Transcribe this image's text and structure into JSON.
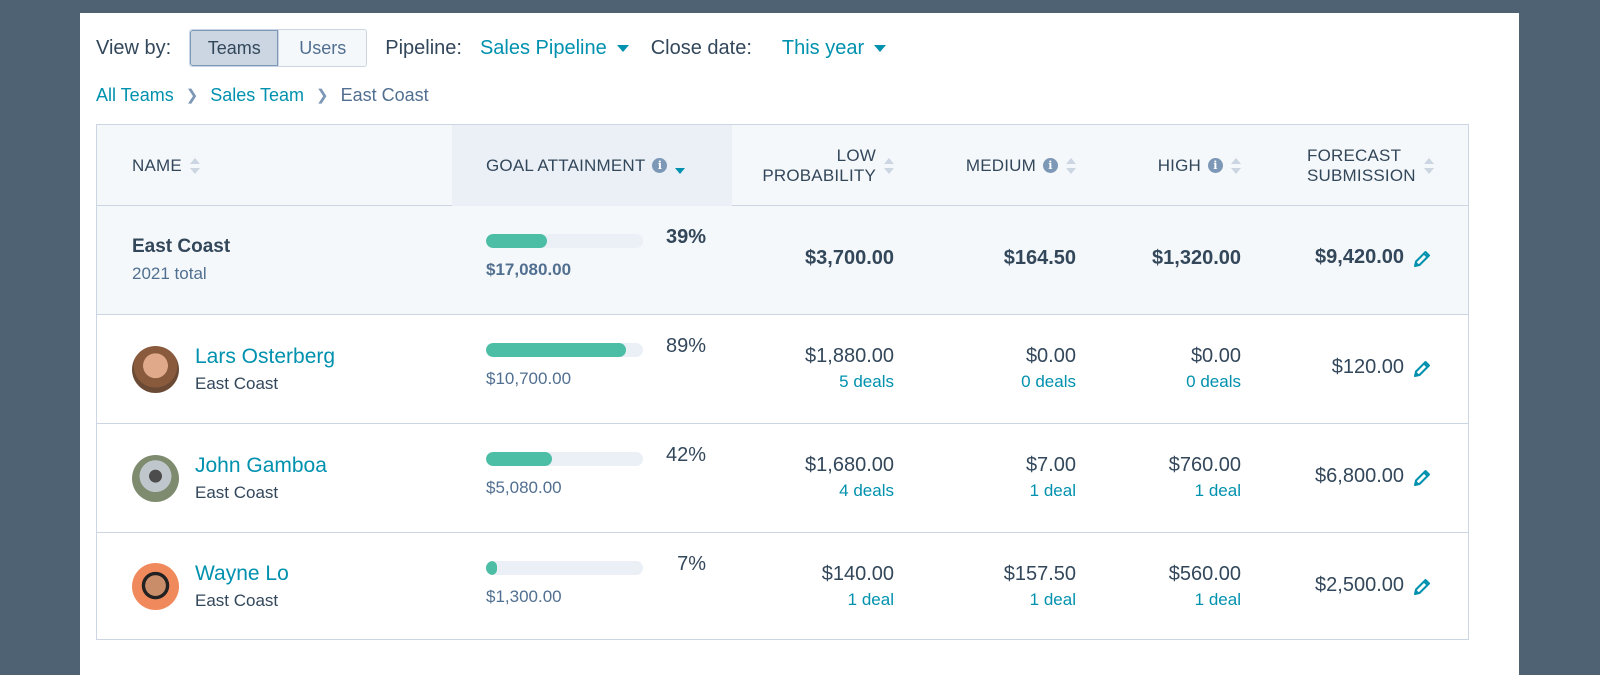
{
  "toolbar": {
    "view_by_label": "View by:",
    "view_options": [
      "Teams",
      "Users"
    ],
    "pipeline_label": "Pipeline:",
    "pipeline_value": "Sales Pipeline",
    "close_date_label": "Close date:",
    "close_date_value": "This year"
  },
  "breadcrumb": [
    "All Teams",
    "Sales Team",
    "East Coast"
  ],
  "columns": {
    "name": "NAME",
    "goal": "GOAL ATTAINMENT",
    "low": "LOW\nPROBABILITY",
    "medium": "MEDIUM",
    "high": "HIGH",
    "forecast": "FORECAST\nSUBMISSION"
  },
  "total_row": {
    "name": "East Coast",
    "sub": "2021 total",
    "goal_pct": "39%",
    "goal_fill": 0.39,
    "goal_amount": "$17,080.00",
    "low": "$3,700.00",
    "medium": "$164.50",
    "high": "$1,320.00",
    "forecast": "$9,420.00"
  },
  "rows": [
    {
      "name": "Lars Osterberg",
      "team": "East Coast",
      "goal_pct": "89%",
      "goal_fill": 0.89,
      "goal_amount": "$10,700.00",
      "low": "$1,880.00",
      "low_deals": "5 deals",
      "medium": "$0.00",
      "medium_deals": "0 deals",
      "high": "$0.00",
      "high_deals": "0 deals",
      "forecast": "$120.00"
    },
    {
      "name": "John Gamboa",
      "team": "East Coast",
      "goal_pct": "42%",
      "goal_fill": 0.42,
      "goal_amount": "$5,080.00",
      "low": "$1,680.00",
      "low_deals": "4 deals",
      "medium": "$7.00",
      "medium_deals": "1 deal",
      "high": "$760.00",
      "high_deals": "1 deal",
      "forecast": "$6,800.00"
    },
    {
      "name": "Wayne Lo",
      "team": "East Coast",
      "goal_pct": "7%",
      "goal_fill": 0.07,
      "goal_amount": "$1,300.00",
      "low": "$140.00",
      "low_deals": "1 deal",
      "medium": "$157.50",
      "medium_deals": "1 deal",
      "high": "$560.00",
      "high_deals": "1 deal",
      "forecast": "$2,500.00"
    }
  ],
  "colors": {
    "accent": "#0091ae",
    "progress": "#4dbea6",
    "text": "#33475b",
    "background": "#4f6273"
  },
  "icons": [
    "info-icon",
    "sort-icon",
    "pencil-icon",
    "caret-down-icon",
    "chevron-right-icon"
  ]
}
